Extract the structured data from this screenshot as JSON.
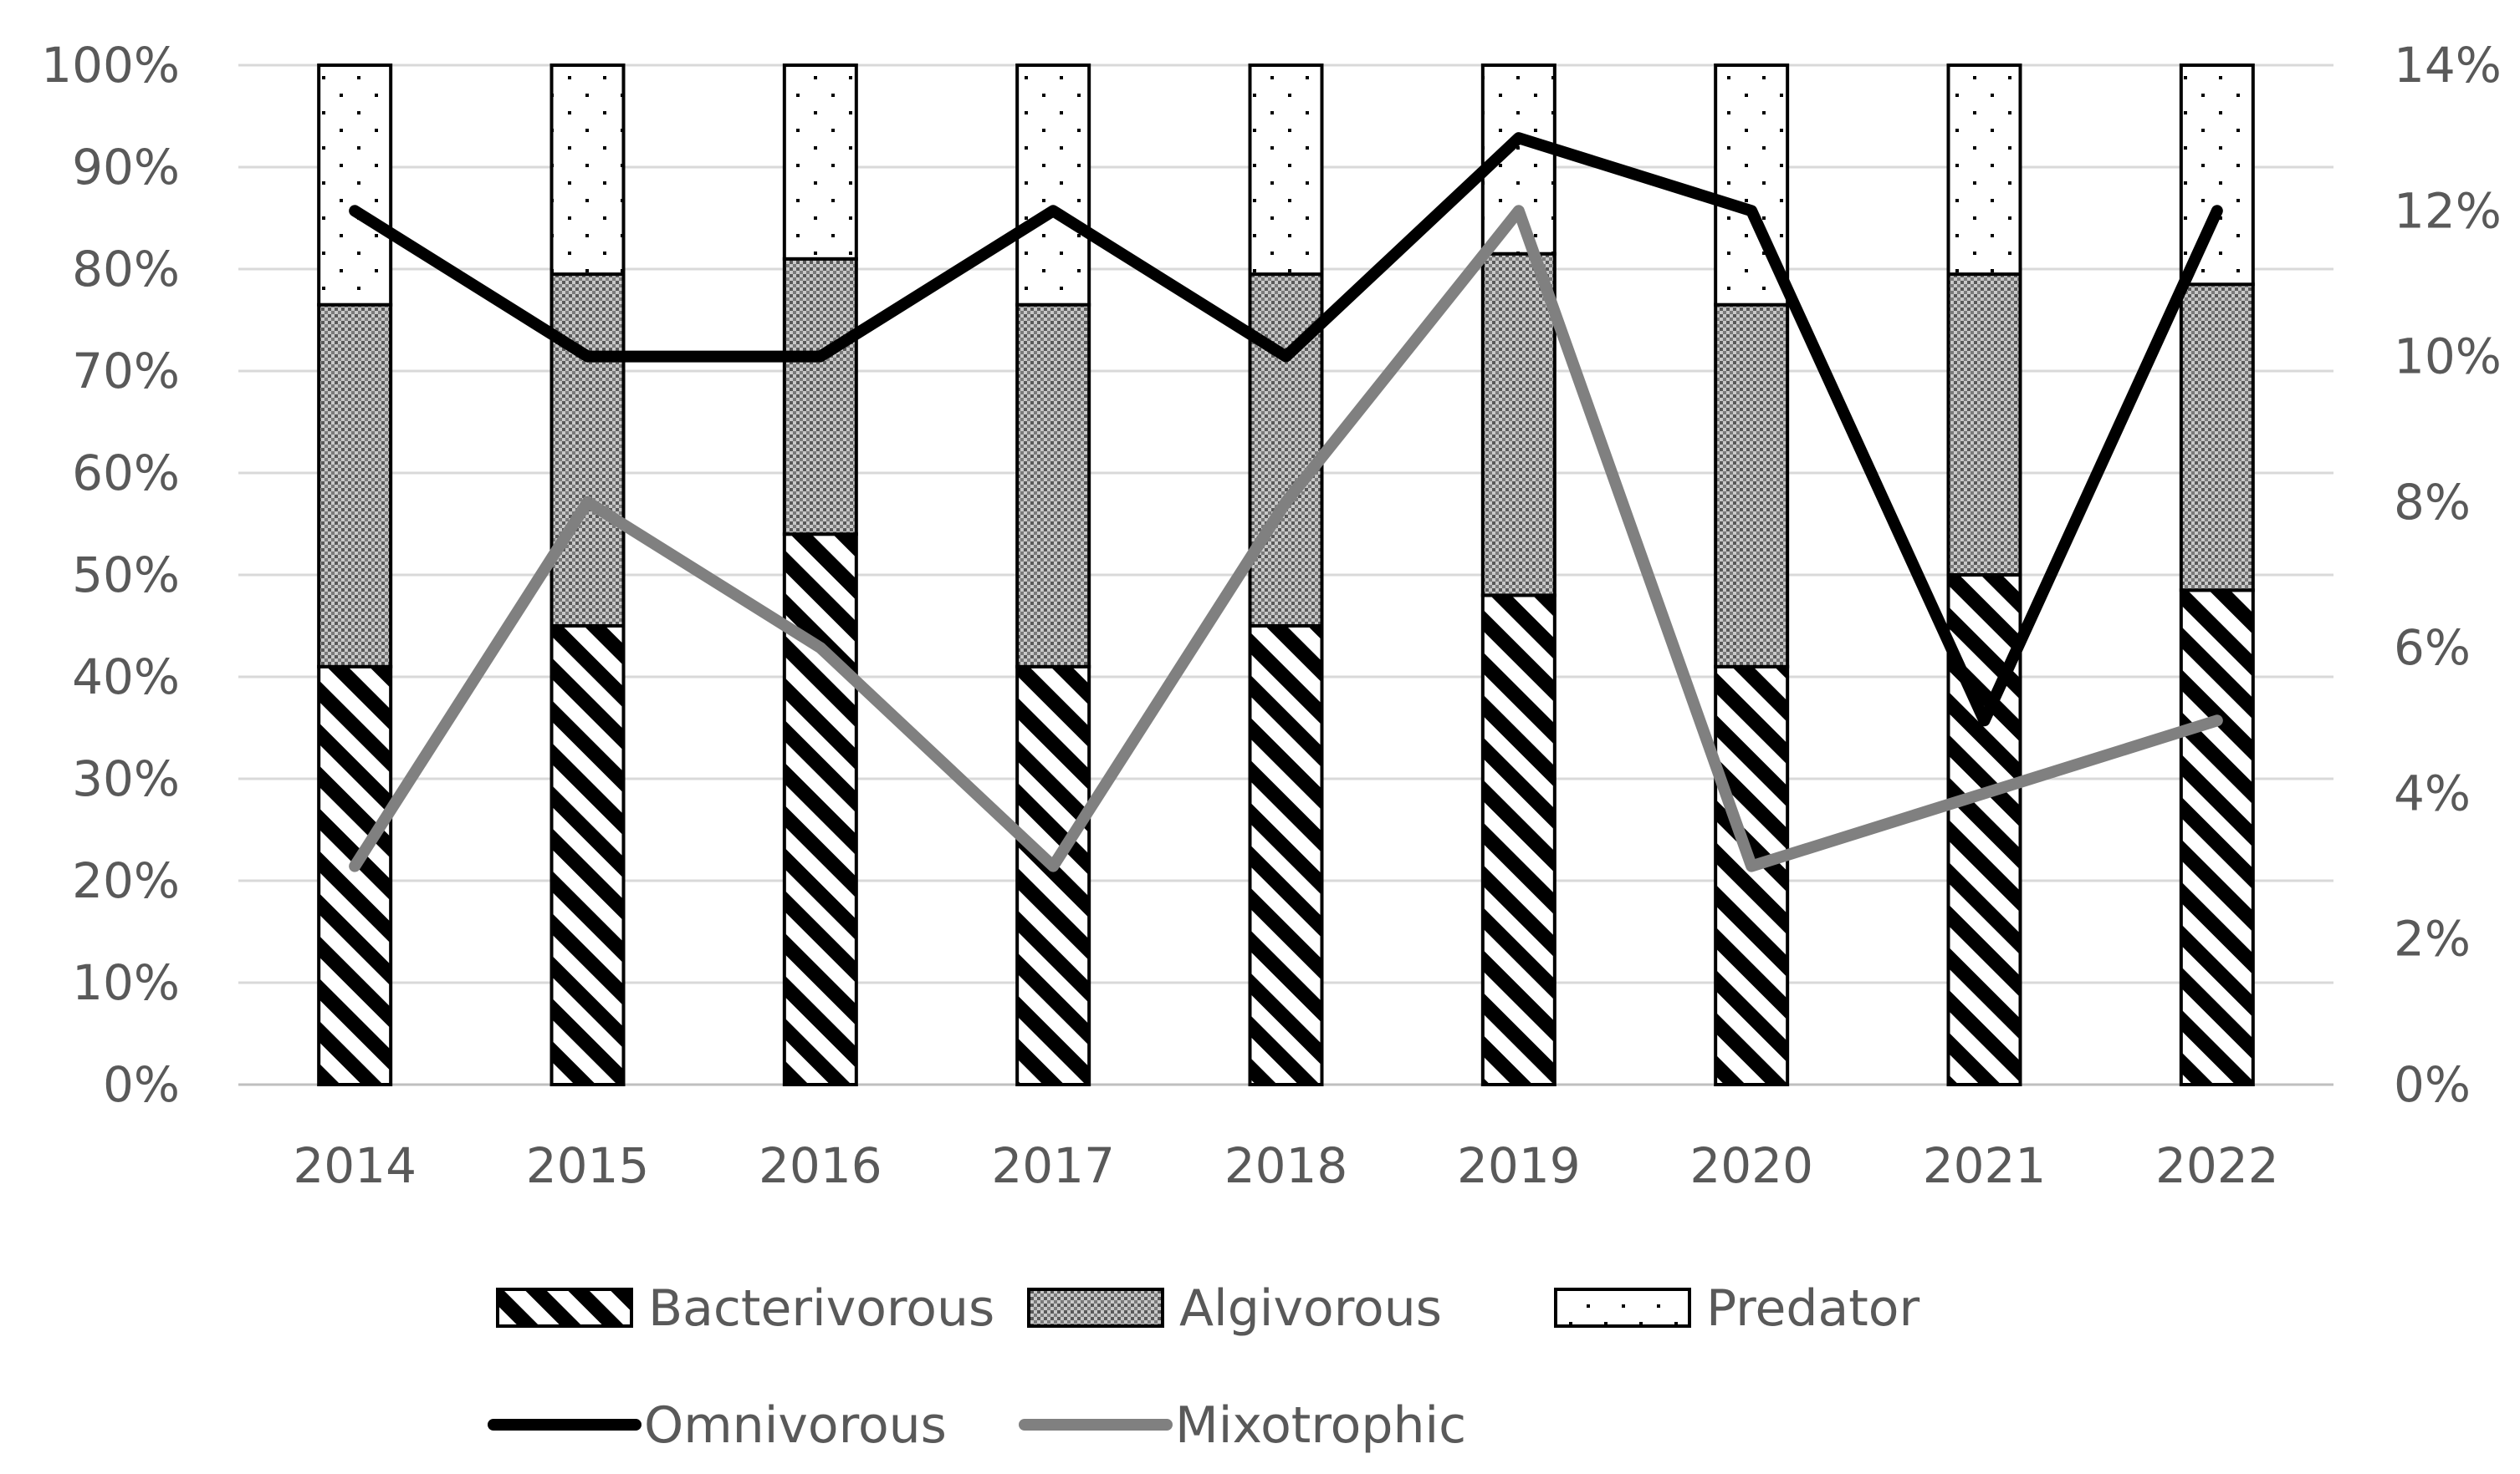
{
  "chart_data": {
    "type": "bar",
    "stacked": true,
    "title": "",
    "xlabel": "",
    "ylabel": "",
    "categories": [
      "2014",
      "2015",
      "2016",
      "2017",
      "2018",
      "2019",
      "2020",
      "2021",
      "2022"
    ],
    "ylim": [
      0,
      100
    ],
    "y_ticks": [
      "0%",
      "10%",
      "20%",
      "30%",
      "40%",
      "50%",
      "60%",
      "70%",
      "80%",
      "90%",
      "100%"
    ],
    "y2lim": [
      0,
      14
    ],
    "y2_ticks": [
      "0%",
      "2%",
      "4%",
      "6%",
      "8%",
      "10%",
      "12%",
      "14%"
    ],
    "series": [
      {
        "name": "Bacterivorous",
        "kind": "bar",
        "axis": "left",
        "pattern": "diagonal-hatch",
        "values": [
          41,
          45,
          54,
          41,
          45,
          48,
          41,
          50,
          48.5
        ]
      },
      {
        "name": "Algivorous",
        "kind": "bar",
        "axis": "left",
        "pattern": "crosshatch",
        "values": [
          35.5,
          34.5,
          27,
          35.5,
          34.5,
          33.5,
          35.5,
          29.5,
          30
        ]
      },
      {
        "name": "Predator",
        "kind": "bar",
        "axis": "left",
        "pattern": "dots",
        "values": [
          23.5,
          20.5,
          19,
          23.5,
          20.5,
          18.5,
          23.5,
          20.5,
          21.5
        ]
      },
      {
        "name": "Omnivorous",
        "kind": "line",
        "axis": "right",
        "color": "#000000",
        "values": [
          12,
          10,
          10,
          12,
          10,
          13,
          12,
          5,
          12
        ]
      },
      {
        "name": "Mixotrophic",
        "kind": "line",
        "axis": "right",
        "color": "#808080",
        "values": [
          3,
          8,
          6,
          3,
          8,
          12,
          3,
          4,
          5
        ]
      }
    ],
    "grid": true,
    "legend_position": "bottom"
  }
}
